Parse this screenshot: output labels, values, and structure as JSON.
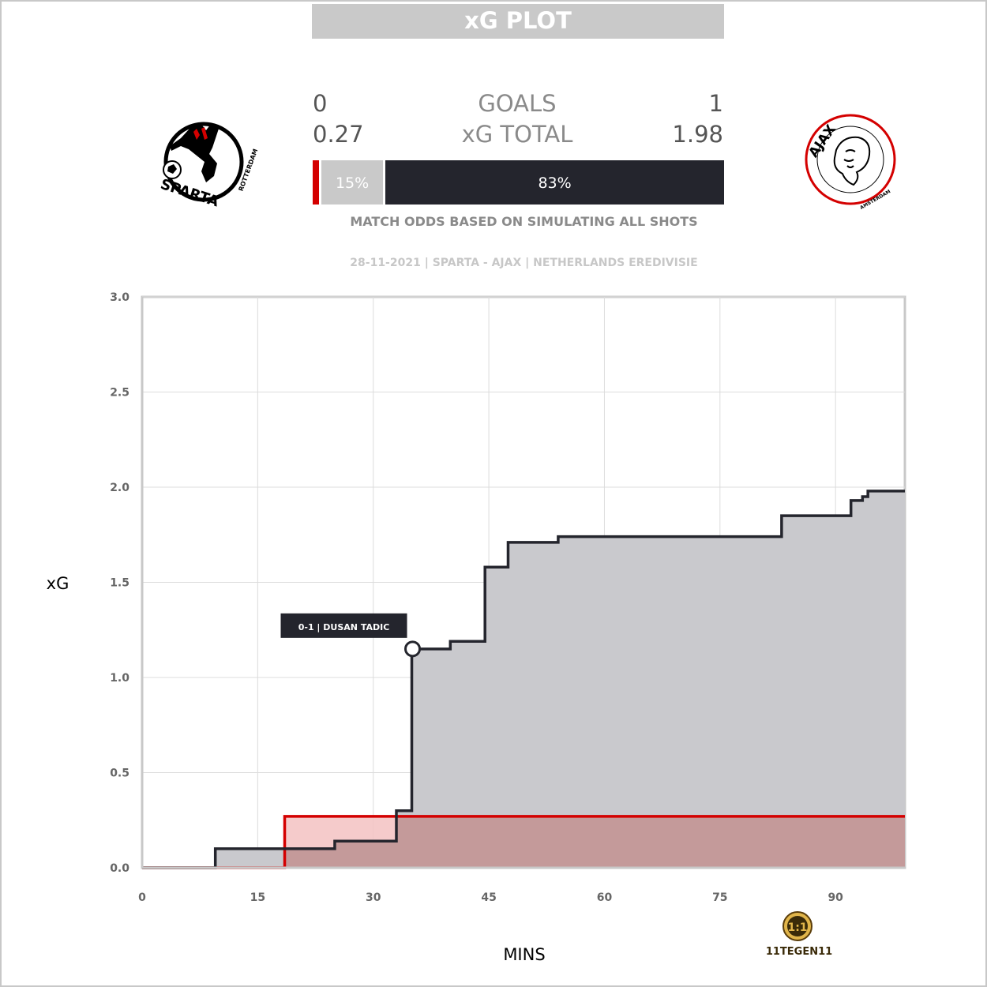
{
  "header": {
    "title": "xG PLOT"
  },
  "match": {
    "home": {
      "goals": "0",
      "xg_total": "0.27",
      "win_pct": "",
      "win_pct_value": 0.01
    },
    "away": {
      "goals": "1",
      "xg_total": "1.98",
      "win_pct": "83%",
      "win_pct_value": 0.83
    },
    "draw": {
      "pct": "15%",
      "pct_value": 0.15
    },
    "goals_label": "GOALS",
    "xg_total_label": "xG TOTAL",
    "odds_caption": "MATCH ODDS BASED ON SIMULATING ALL SHOTS",
    "meta": "28-11-2021 | SPARTA - AJAX | NETHERLANDS EREDIVISIE",
    "home_logo": {
      "text": "SPARTA",
      "sub": "ROTTERDAM"
    },
    "away_logo": {
      "text": "AJAX",
      "sub": "AMSTERDAM"
    }
  },
  "colors": {
    "home": "#d40000",
    "away": "#24252d",
    "draw": "#c9c9c9",
    "home_fill": "#f3c2c2",
    "away_fill": "#c9c9cd",
    "overlap_fill": "#c49a9a"
  },
  "brand": {
    "text": "11TEGEN11",
    "icon": "11tegen11-logo-icon"
  },
  "chart_data": {
    "type": "line",
    "xlabel": "MINS",
    "ylabel": "xG",
    "xlim": [
      0,
      99
    ],
    "ylim": [
      0,
      3.0
    ],
    "xticks": [
      0,
      15,
      30,
      45,
      60,
      75,
      90
    ],
    "yticks": [
      0.0,
      0.5,
      1.0,
      1.5,
      2.0,
      2.5,
      3.0
    ],
    "ytick_labels": [
      "0.0",
      "0.5",
      "1.0",
      "1.5",
      "2.0",
      "2.5",
      "3.0"
    ],
    "grid": true,
    "step": true,
    "series": [
      {
        "name": "",
        "team": "home",
        "x": [
          0,
          18.5,
          99
        ],
        "y": [
          0,
          0.27,
          0.27
        ]
      },
      {
        "name": "",
        "team": "away",
        "x": [
          0,
          9.5,
          25,
          33,
          35,
          40,
          44.5,
          47.5,
          54,
          83,
          92,
          92.8,
          93.5,
          94.2,
          99
        ],
        "y": [
          0,
          0.1,
          0.14,
          0.3,
          1.15,
          1.19,
          1.58,
          1.71,
          1.74,
          1.85,
          1.93,
          1.93,
          1.95,
          1.98,
          1.98
        ]
      }
    ],
    "annotations": [
      {
        "text": "0-1 | DUSAN TADIC",
        "x": 35,
        "y": 1.15,
        "team": "away"
      }
    ]
  }
}
